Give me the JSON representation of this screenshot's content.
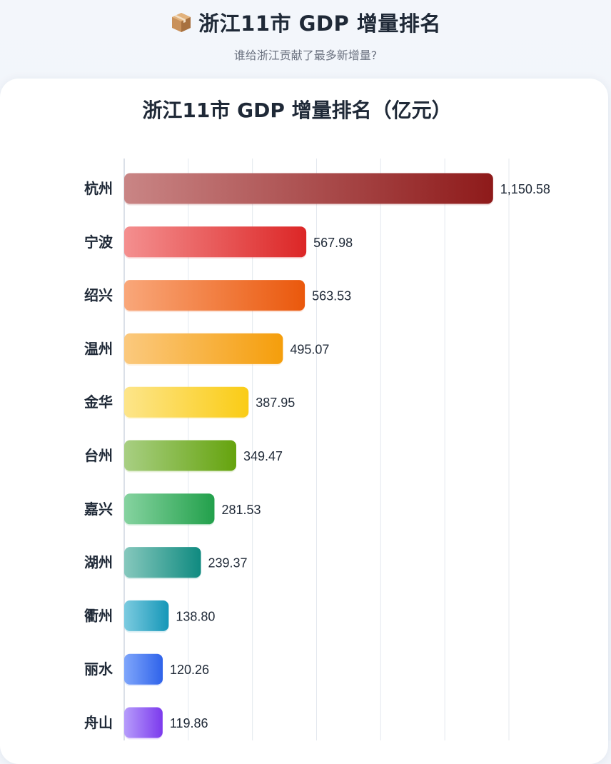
{
  "header": {
    "title": "浙江11市 GDP 增量排名",
    "subtitle": "谁给浙江贡献了最多新增量?"
  },
  "chart_data": {
    "type": "bar",
    "orientation": "horizontal",
    "title": "浙江11市 GDP 增量排名（亿元）",
    "categories": [
      "杭州",
      "宁波",
      "绍兴",
      "温州",
      "金华",
      "台州",
      "嘉兴",
      "湖州",
      "衢州",
      "丽水",
      "舟山"
    ],
    "values": [
      1150.58,
      567.98,
      563.53,
      495.07,
      387.95,
      349.47,
      281.53,
      239.37,
      138.8,
      120.26,
      119.86
    ],
    "value_labels": [
      "1,150.58",
      "567.98",
      "563.53",
      "495.07",
      "387.95",
      "349.47",
      "281.53",
      "239.37",
      "138.80",
      "120.26",
      "119.86"
    ],
    "xlim": [
      0,
      1200
    ],
    "grid": true,
    "bar_colors": [
      [
        "#c98585",
        "#8e1a1a"
      ],
      [
        "#f48f8f",
        "#dc2626"
      ],
      [
        "#f9a77a",
        "#ea580c"
      ],
      [
        "#fbc97e",
        "#f59e0b"
      ],
      [
        "#fde58a",
        "#facc15"
      ],
      [
        "#a8cf83",
        "#65a30d"
      ],
      [
        "#86d3a0",
        "#22a04b"
      ],
      [
        "#86c8bd",
        "#0f8a80"
      ],
      [
        "#7ccbe0",
        "#1597b8"
      ],
      [
        "#7fa6fb",
        "#2f63ea"
      ],
      [
        "#b69cfb",
        "#7c3aed"
      ]
    ]
  }
}
